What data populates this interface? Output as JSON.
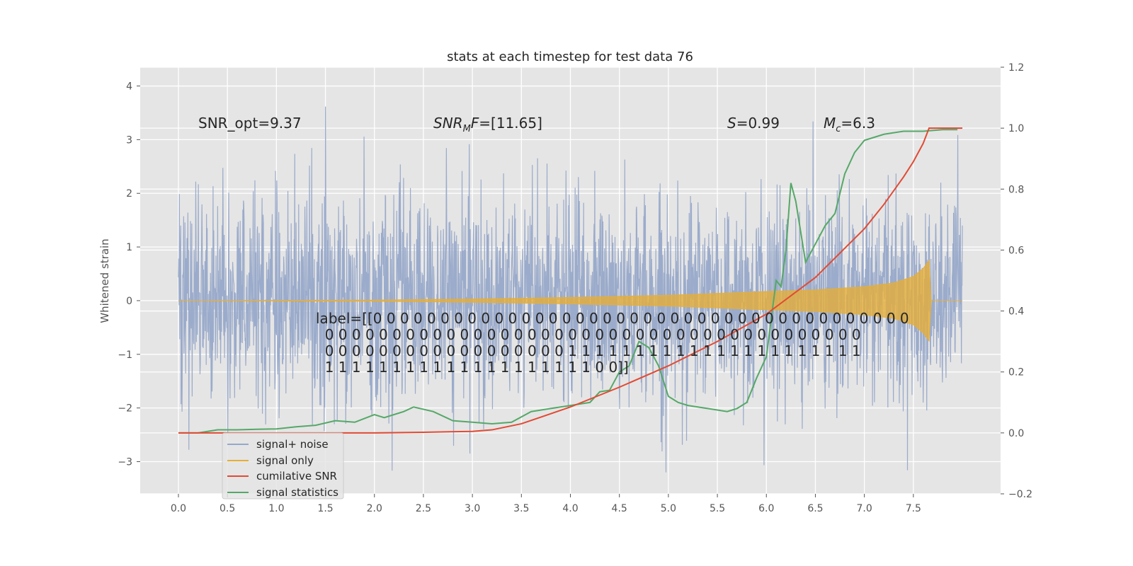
{
  "chart_data": {
    "type": "line",
    "title": "stats at each timestep for test data 76",
    "ylabel": "Whitened strain",
    "xlim": [
      -0.39,
      8.39
    ],
    "ylim": [
      -3.6,
      4.35
    ],
    "y2lim": [
      -0.2,
      1.2
    ],
    "x_ticks": [
      "0.0",
      "0.5",
      "1.0",
      "1.5",
      "2.0",
      "2.5",
      "3.0",
      "3.5",
      "4.0",
      "4.5",
      "5.0",
      "5.5",
      "6.0",
      "6.5",
      "7.0",
      "7.5"
    ],
    "y_ticks": [
      "−3",
      "−2",
      "−1",
      "0",
      "1",
      "2",
      "3",
      "4"
    ],
    "y2_ticks": [
      "−0.2",
      "0.0",
      "0.2",
      "0.4",
      "0.6",
      "0.8",
      "1.0",
      "1.2"
    ],
    "grid": true,
    "legend_placement": "lower-left",
    "annotations": {
      "snr_opt": "SNR_opt=9.37",
      "snr_mf": "SNR_M F=[11.65]",
      "s_val": "S=0.99",
      "mc_val": "M_c=6.3"
    },
    "label_lines": [
      "label=[[0 0 0 0 0 0 0 0 0 0 0 0 0 0 0 0 0 0 0 0 0 0 0 0 0 0 0 0 0 0 0 0 0 0 0 0 0 0 0 0",
      "  0 0 0 0 0 0 0 0 0 0 0 0 0 0 0 0 0 0 0 0 0 0 0 0 0 0 0 0 0 0 0 0 0 0 0 0 0 0 0 0",
      "  0 0 0 0 0 0 0 0 0 0 0 0 0 0 0 0 0 0 1 1 1 1 1 1 1 1 1 1 1 1 1 1 1 1 1 1 1 1 1 1",
      "  1 1 1 1 1 1 1 1 1 1 1 1 1 1 1 1 1 1 1 1 0 0]]"
    ],
    "series": [
      {
        "name": "signal+ noise",
        "color": "#97a8c9",
        "axis": "left",
        "x_range": [
          0.0,
          8.0
        ],
        "envelope_upper_approx": 1.7,
        "envelope_lower_approx": -1.7,
        "peak_max": 4.0,
        "peak_min": -3.2
      },
      {
        "name": "signal only",
        "color": "#e5ae38",
        "axis": "left",
        "x": [
          0.0,
          2.0,
          3.0,
          4.0,
          5.0,
          6.0,
          6.5,
          7.0,
          7.3,
          7.5,
          7.6,
          7.66,
          7.67,
          8.0
        ],
        "amplitude": [
          0.0,
          0.01,
          0.03,
          0.06,
          0.1,
          0.17,
          0.2,
          0.26,
          0.33,
          0.45,
          0.6,
          0.75,
          0.0,
          0.0
        ]
      },
      {
        "name": "cumilative SNR",
        "color": "#e24a33",
        "axis": "right",
        "x": [
          0.0,
          1.0,
          2.0,
          2.5,
          3.0,
          3.2,
          3.5,
          4.0,
          4.5,
          5.0,
          5.5,
          6.0,
          6.5,
          7.0,
          7.2,
          7.4,
          7.5,
          7.6,
          7.66,
          7.67,
          8.0
        ],
        "values": [
          0.0,
          0.0,
          0.0,
          0.002,
          0.005,
          0.01,
          0.03,
          0.085,
          0.15,
          0.22,
          0.3,
          0.39,
          0.51,
          0.67,
          0.75,
          0.84,
          0.89,
          0.95,
          1.0,
          1.0,
          1.0
        ]
      },
      {
        "name": "signal statistics",
        "color": "#55a868",
        "axis": "right",
        "x": [
          0.0,
          0.2,
          0.4,
          0.6,
          0.8,
          1.0,
          1.2,
          1.4,
          1.6,
          1.8,
          2.0,
          2.1,
          2.2,
          2.3,
          2.4,
          2.6,
          2.8,
          3.0,
          3.2,
          3.4,
          3.6,
          3.8,
          4.0,
          4.2,
          4.3,
          4.4,
          4.5,
          4.6,
          4.7,
          4.8,
          4.9,
          5.0,
          5.1,
          5.2,
          5.4,
          5.6,
          5.7,
          5.8,
          5.9,
          6.0,
          6.1,
          6.15,
          6.2,
          6.25,
          6.3,
          6.4,
          6.5,
          6.6,
          6.7,
          6.8,
          6.9,
          7.0,
          7.2,
          7.4,
          7.6,
          7.8,
          7.95
        ],
        "values": [
          0.0,
          0.0,
          0.01,
          0.01,
          0.012,
          0.013,
          0.02,
          0.025,
          0.04,
          0.035,
          0.06,
          0.05,
          0.06,
          0.07,
          0.085,
          0.07,
          0.04,
          0.035,
          0.03,
          0.035,
          0.07,
          0.08,
          0.09,
          0.1,
          0.135,
          0.14,
          0.2,
          0.22,
          0.3,
          0.28,
          0.22,
          0.12,
          0.1,
          0.09,
          0.08,
          0.07,
          0.08,
          0.1,
          0.18,
          0.25,
          0.5,
          0.48,
          0.6,
          0.82,
          0.76,
          0.56,
          0.62,
          0.68,
          0.72,
          0.85,
          0.92,
          0.96,
          0.98,
          0.99,
          0.99,
          0.995,
          0.995
        ]
      }
    ]
  }
}
